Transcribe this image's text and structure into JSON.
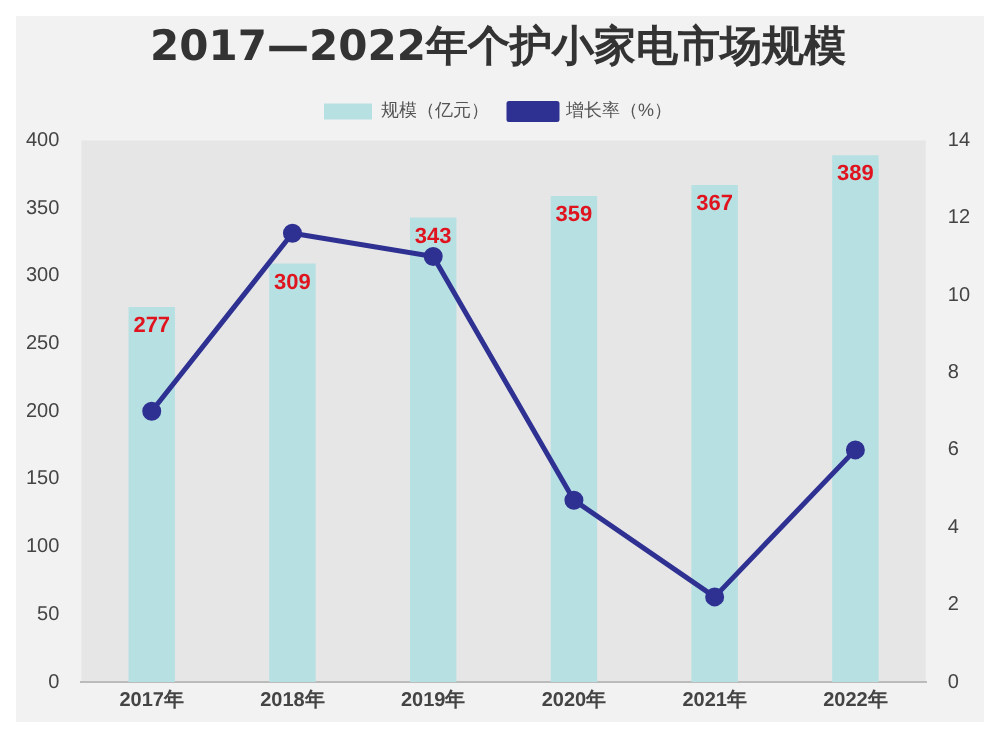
{
  "chart_data": {
    "type": "bar",
    "title": "2017—2022年个护小家电市场规模",
    "categories": [
      "2017年",
      "2018年",
      "2019年",
      "2020年",
      "2021年",
      "2022年"
    ],
    "series": [
      {
        "name": "规模（亿元）",
        "color": "#b7e0e3",
        "values": [
          277,
          309,
          343,
          359,
          367,
          389
        ],
        "value_labels": [
          "277",
          "309",
          "343",
          "359",
          "367",
          "389"
        ]
      },
      {
        "name": "增长率（%）",
        "type": "line",
        "axis": "y2",
        "color": "#2e3192",
        "marker": "circle",
        "values": [
          7.0,
          11.6,
          11.0,
          4.7,
          2.2,
          6.0
        ]
      }
    ],
    "ylim": [
      0,
      400
    ],
    "yticks": [
      0,
      50,
      100,
      150,
      200,
      250,
      300,
      350,
      400
    ],
    "y2lim": [
      0,
      14
    ],
    "y2ticks": [
      0,
      2,
      4,
      6,
      8,
      10,
      12,
      14
    ],
    "grid": false,
    "legend": "top"
  }
}
